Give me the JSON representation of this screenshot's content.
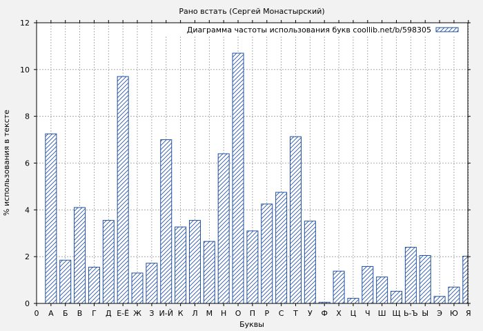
{
  "chart_data": {
    "type": "bar",
    "title": "Рано встать (Сергей Монастырский)",
    "xlabel": "Буквы",
    "ylabel": "% использования в тексте",
    "legend": {
      "label": "Диаграмма частоты использования букв coollib.net/b/598305",
      "placement": "top-right"
    },
    "ylim": [
      0,
      12
    ],
    "yticks": [
      0,
      2,
      4,
      6,
      8,
      10,
      12
    ],
    "grid": true,
    "bar_color": "#1f4fa0",
    "categories": [
      "А",
      "Б",
      "В",
      "Г",
      "Д",
      "Е-Ё",
      "Ж",
      "З",
      "И-Й",
      "К",
      "Л",
      "М",
      "Н",
      "О",
      "П",
      "Р",
      "С",
      "Т",
      "У",
      "Ф",
      "Х",
      "Ц",
      "Ч",
      "Ш",
      "Щ",
      "Ь-Ъ",
      "Ы",
      "Э",
      "Ю",
      "Я"
    ],
    "values": [
      7.25,
      1.85,
      4.1,
      1.55,
      3.55,
      9.7,
      1.3,
      1.72,
      7.0,
      3.27,
      3.55,
      2.65,
      6.4,
      10.7,
      3.1,
      4.25,
      4.75,
      7.13,
      3.52,
      0.05,
      1.38,
      0.22,
      1.58,
      1.13,
      0.52,
      2.4,
      2.05,
      0.3,
      0.7,
      2.02
    ],
    "xtick_labels": [
      "0",
      "А",
      "Б",
      "В",
      "Г",
      "Д",
      "Е-Ё",
      "Ж",
      "З",
      "И-Й",
      "К",
      "Л",
      "М",
      "Н",
      "О",
      "П",
      "Р",
      "С",
      "Т",
      "У",
      "Ф",
      "Х",
      "Ц",
      "Ч",
      "Ш",
      "Щ",
      "Ь-Ъ",
      "Ы",
      "Э",
      "Ю",
      "Я"
    ]
  }
}
